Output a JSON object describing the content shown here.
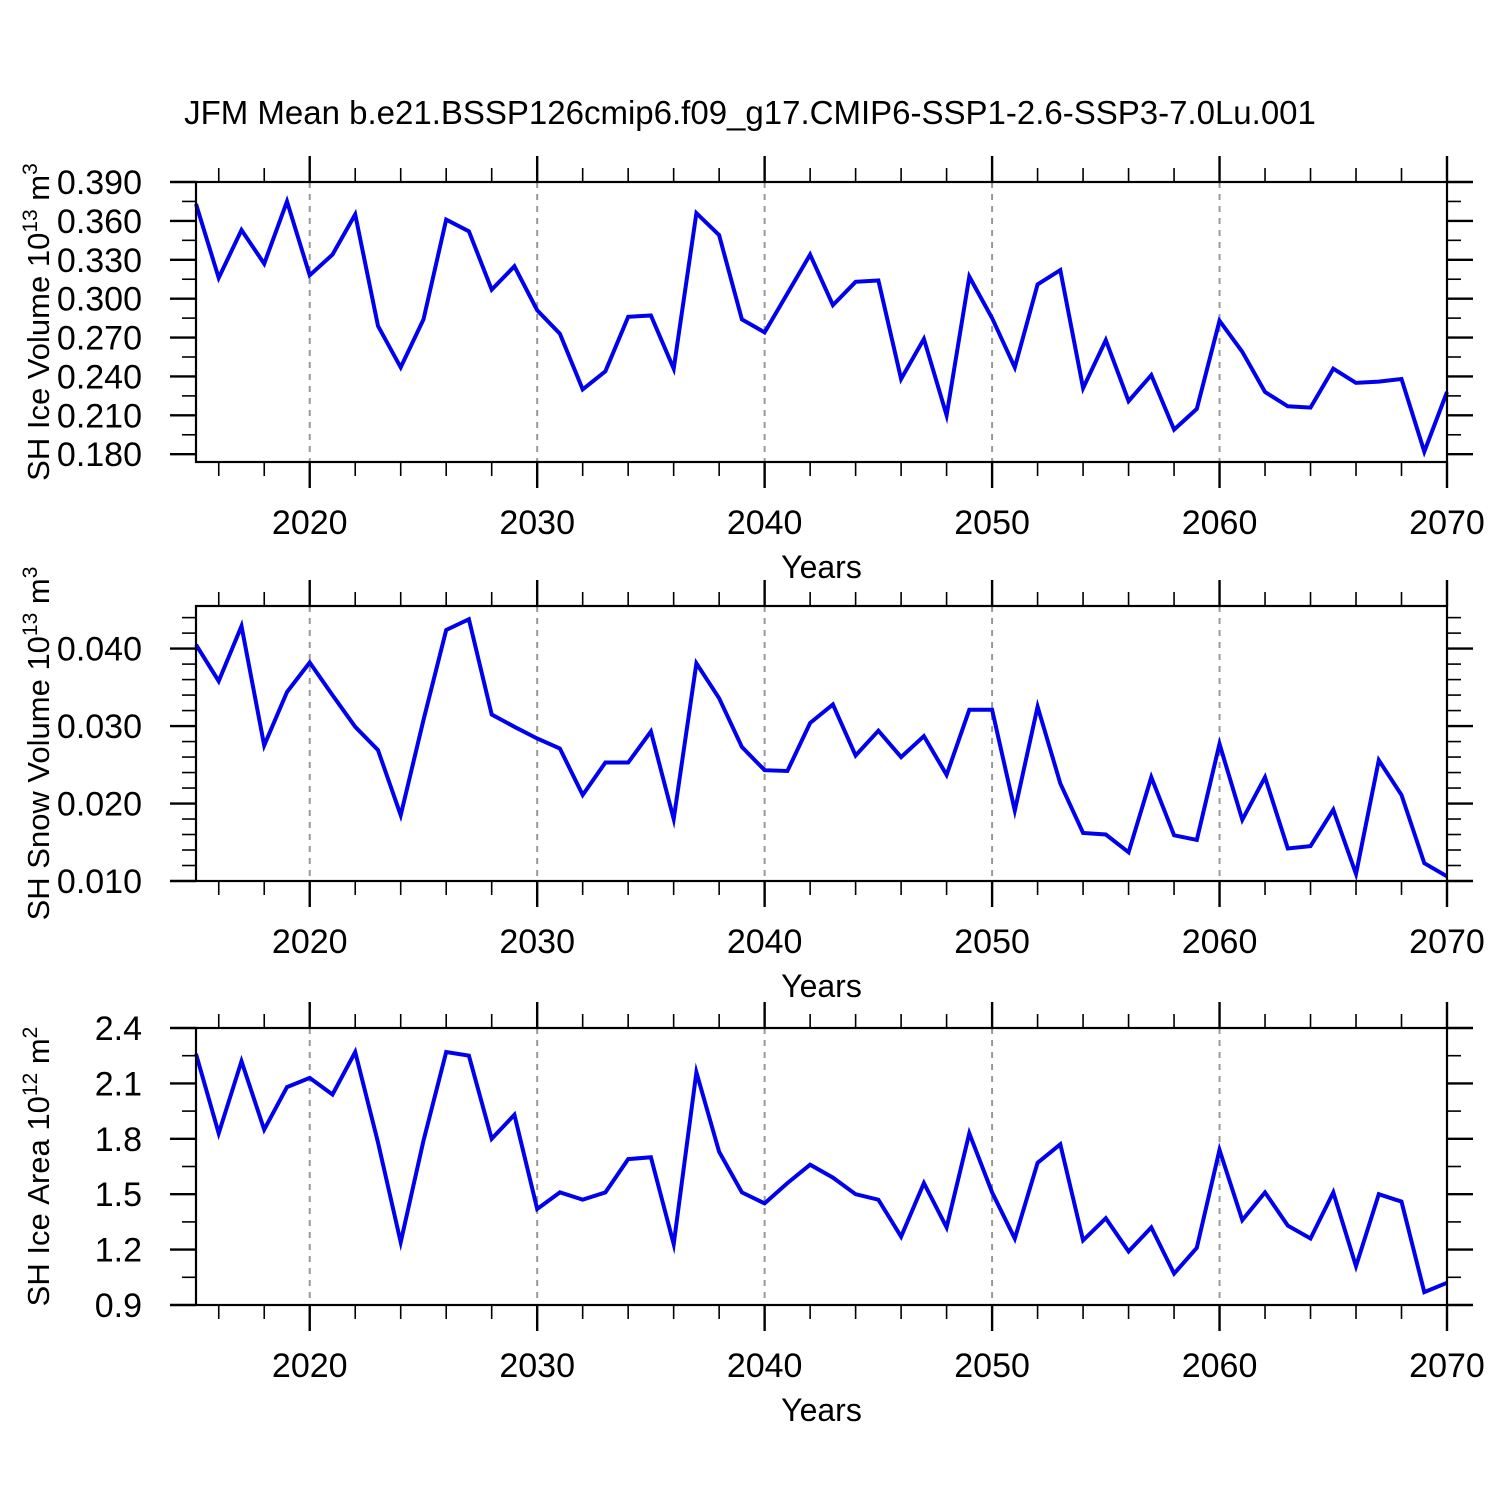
{
  "title": "JFM Mean b.e21.BSSP126cmip6.f09_g17.CMIP6-SSP1-2.6-SSP3-7.0Lu.001",
  "style": {
    "line_color": "#0000EE",
    "grid_color": "#999999",
    "frame_color": "#000000",
    "text_color": "#000000"
  },
  "x_axis": {
    "label": "Years",
    "years": [
      2015,
      2016,
      2017,
      2018,
      2019,
      2020,
      2021,
      2022,
      2023,
      2024,
      2025,
      2026,
      2027,
      2028,
      2029,
      2030,
      2031,
      2032,
      2033,
      2034,
      2035,
      2036,
      2037,
      2038,
      2039,
      2040,
      2041,
      2042,
      2043,
      2044,
      2045,
      2046,
      2047,
      2048,
      2049,
      2050,
      2051,
      2052,
      2053,
      2054,
      2055,
      2056,
      2057,
      2058,
      2059,
      2060,
      2061,
      2062,
      2063,
      2064,
      2065,
      2066,
      2067,
      2068,
      2069,
      2070
    ],
    "range": [
      2015,
      2070
    ],
    "major_ticks": [
      2020,
      2030,
      2040,
      2050,
      2060,
      2070
    ],
    "major_tick_labels": [
      "2020",
      "2030",
      "2040",
      "2050",
      "2060",
      "2070"
    ],
    "minor_step": 2,
    "gridline_years": [
      2020,
      2030,
      2040,
      2050,
      2060
    ]
  },
  "chart_data": [
    {
      "type": "line",
      "name": "sh-ice-volume",
      "ylabel": "SH Ice Volume 10^13 m^3",
      "ylabel_parts": [
        {
          "t": "SH Ice Volume 10"
        },
        {
          "t": "13",
          "sup": true
        },
        {
          "t": " m"
        },
        {
          "t": "3",
          "sup": true
        }
      ],
      "xlabel": "Years",
      "ylim": [
        0.174,
        0.39
      ],
      "yticks": {
        "values": [
          0.39,
          0.36,
          0.33,
          0.3,
          0.27,
          0.24,
          0.21,
          0.18
        ],
        "labels": [
          "0.390",
          "0.360",
          "0.330",
          "0.300",
          "0.270",
          "0.240",
          "0.210",
          "0.180"
        ]
      },
      "y_minor_step": 0.015,
      "values": [
        0.373,
        0.316,
        0.353,
        0.327,
        0.375,
        0.318,
        0.334,
        0.365,
        0.279,
        0.247,
        0.284,
        0.361,
        0.352,
        0.307,
        0.325,
        0.291,
        0.273,
        0.23,
        0.244,
        0.286,
        0.287,
        0.246,
        0.366,
        0.349,
        0.284,
        0.274,
        0.304,
        0.334,
        0.295,
        0.313,
        0.314,
        0.238,
        0.269,
        0.21,
        0.317,
        0.285,
        0.247,
        0.311,
        0.322,
        0.231,
        0.268,
        0.221,
        0.241,
        0.199,
        0.215,
        0.283,
        0.259,
        0.228,
        0.217,
        0.216,
        0.246,
        0.235,
        0.236,
        0.238,
        0.182,
        0.228
      ]
    },
    {
      "type": "line",
      "name": "sh-snow-volume",
      "ylabel": "SH Snow Volume 10^13 m^3",
      "ylabel_parts": [
        {
          "t": "SH Snow Volume 10"
        },
        {
          "t": "13",
          "sup": true
        },
        {
          "t": " m"
        },
        {
          "t": "3",
          "sup": true
        }
      ],
      "xlabel": "Years",
      "ylim": [
        0.01,
        0.0455
      ],
      "yticks": {
        "values": [
          0.04,
          0.03,
          0.02,
          0.01
        ],
        "labels": [
          "0.040",
          "0.030",
          "0.020",
          "0.010"
        ]
      },
      "y_minor_step": 0.002,
      "values": [
        0.0405,
        0.0358,
        0.0429,
        0.0275,
        0.0344,
        0.0382,
        0.034,
        0.0299,
        0.0269,
        0.0185,
        0.0308,
        0.0424,
        0.0438,
        0.0315,
        0.0299,
        0.0284,
        0.0271,
        0.0211,
        0.0253,
        0.0253,
        0.0293,
        0.018,
        0.0381,
        0.0336,
        0.0273,
        0.0243,
        0.0242,
        0.0304,
        0.0328,
        0.0262,
        0.0294,
        0.026,
        0.0287,
        0.0237,
        0.0321,
        0.0321,
        0.0191,
        0.0325,
        0.0226,
        0.0162,
        0.016,
        0.0137,
        0.0234,
        0.0159,
        0.0153,
        0.0277,
        0.0179,
        0.0234,
        0.0142,
        0.0145,
        0.0192,
        0.0109,
        0.0256,
        0.0211,
        0.0123,
        0.0106
      ]
    },
    {
      "type": "line",
      "name": "sh-ice-area",
      "ylabel": "SH Ice Area 10^12 m^2",
      "ylabel_parts": [
        {
          "t": "SH Ice Area 10"
        },
        {
          "t": "12",
          "sup": true
        },
        {
          "t": " m"
        },
        {
          "t": "2",
          "sup": true
        }
      ],
      "xlabel": "Years",
      "ylim": [
        0.9,
        2.4
      ],
      "yticks": {
        "values": [
          2.4,
          2.1,
          1.8,
          1.5,
          1.2,
          0.9
        ],
        "labels": [
          "2.4",
          "2.1",
          "1.8",
          "1.5",
          "1.2",
          "0.9"
        ]
      },
      "y_minor_step": 0.15,
      "values": [
        2.26,
        1.83,
        2.22,
        1.85,
        2.08,
        2.13,
        2.04,
        2.27,
        1.78,
        1.24,
        1.79,
        2.27,
        2.25,
        1.8,
        1.93,
        1.42,
        1.51,
        1.47,
        1.51,
        1.69,
        1.7,
        1.23,
        2.16,
        1.73,
        1.51,
        1.45,
        1.56,
        1.66,
        1.59,
        1.5,
        1.47,
        1.27,
        1.56,
        1.32,
        1.83,
        1.51,
        1.26,
        1.67,
        1.77,
        1.25,
        1.37,
        1.19,
        1.32,
        1.07,
        1.21,
        1.74,
        1.36,
        1.51,
        1.33,
        1.26,
        1.51,
        1.11,
        1.5,
        1.46,
        0.97,
        1.02
      ]
    }
  ]
}
